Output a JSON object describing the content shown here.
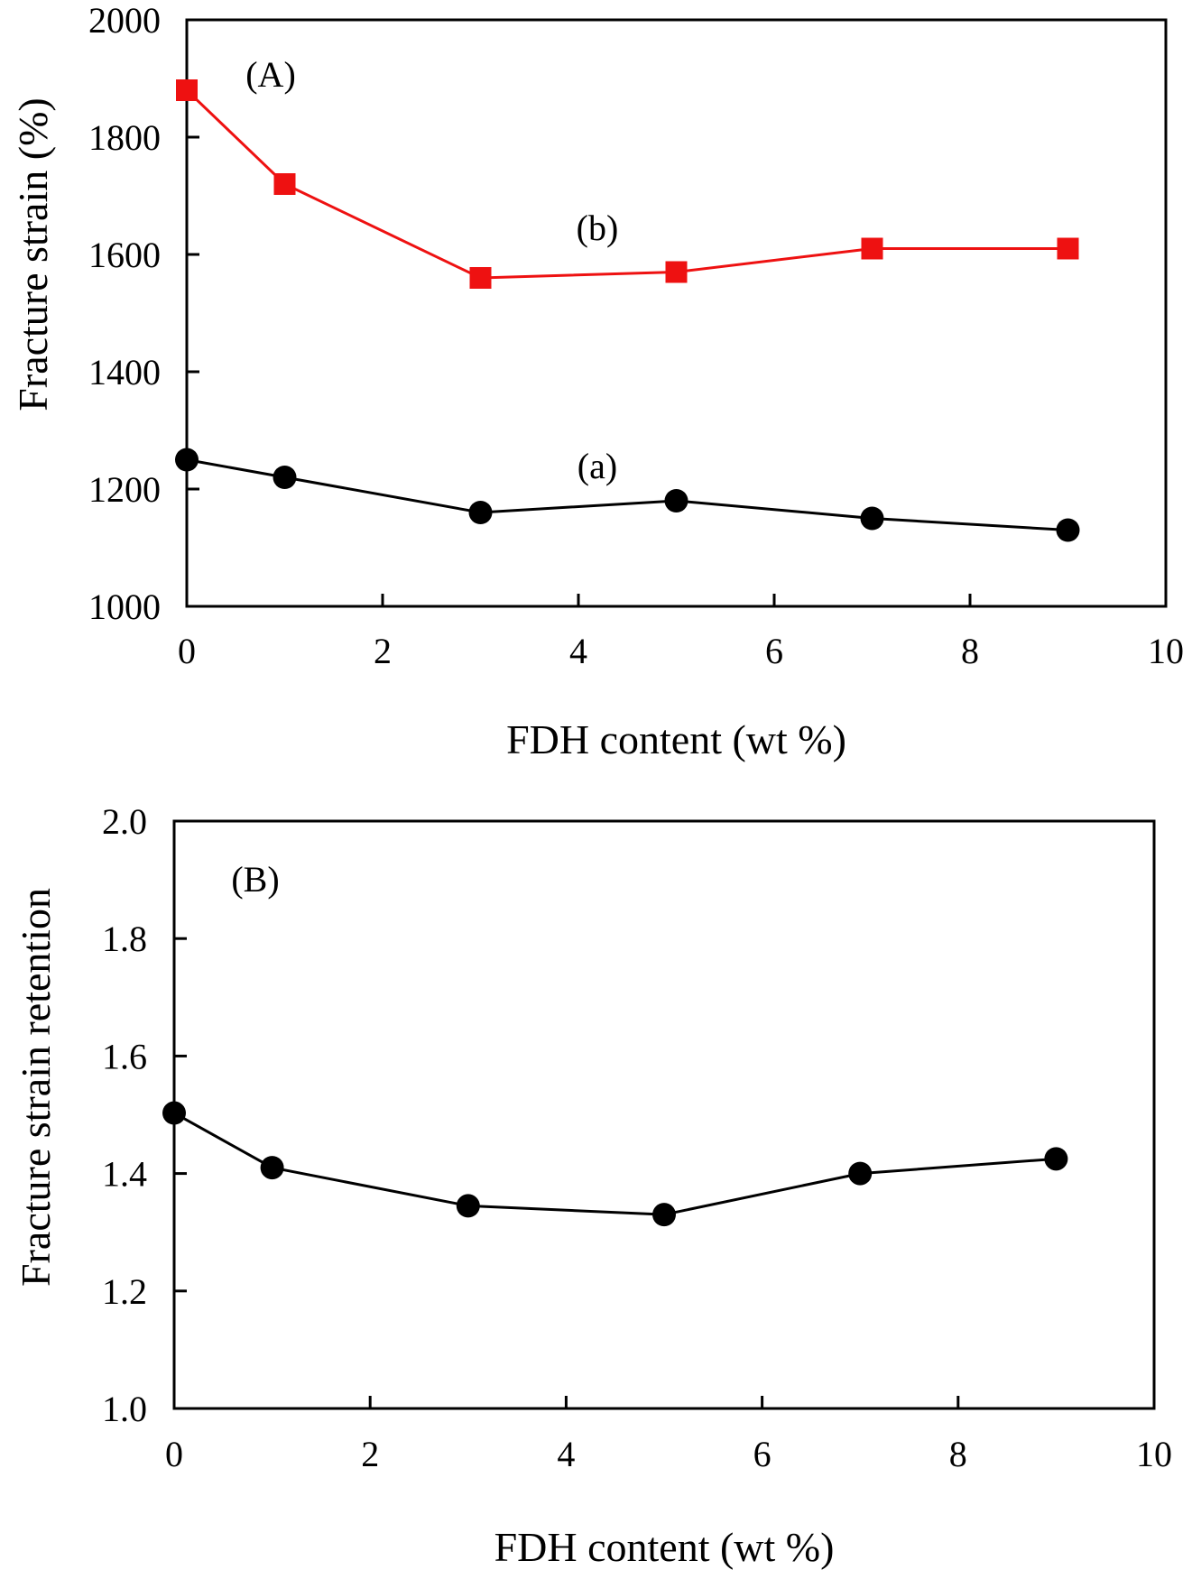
{
  "chart_data": [
    {
      "panel_label": "(A)",
      "type": "line",
      "xlabel": "FDH content (wt %)",
      "ylabel": "Fracture strain (%)",
      "xlim": [
        0,
        10
      ],
      "ylim": [
        1000,
        2000
      ],
      "xticks": [
        0,
        2,
        4,
        6,
        8,
        10
      ],
      "yticks": [
        1000,
        1200,
        1400,
        1600,
        1800,
        2000
      ],
      "grid": false,
      "series": [
        {
          "name": "(a)",
          "marker": "circle",
          "color": "#000000",
          "x": [
            0,
            1,
            3,
            5,
            7,
            9
          ],
          "y": [
            1250,
            1220,
            1160,
            1180,
            1150,
            1130
          ]
        },
        {
          "name": "(b)",
          "marker": "square",
          "color": "#ee1111",
          "x": [
            0,
            1,
            3,
            5,
            7,
            9
          ],
          "y": [
            1880,
            1720,
            1560,
            1570,
            1610,
            1610
          ]
        }
      ]
    },
    {
      "panel_label": "(B)",
      "type": "line",
      "xlabel": "FDH content (wt %)",
      "ylabel": "Fracture strain retention",
      "xlim": [
        0,
        10
      ],
      "ylim": [
        1.0,
        2.0
      ],
      "xticks": [
        0,
        2,
        4,
        6,
        8,
        10
      ],
      "yticks": [
        1.0,
        1.2,
        1.4,
        1.6,
        1.8,
        2.0
      ],
      "grid": false,
      "series": [
        {
          "marker": "circle",
          "color": "#000000",
          "x": [
            0,
            1,
            3,
            5,
            7,
            9
          ],
          "y": [
            1.503,
            1.41,
            1.345,
            1.33,
            1.4,
            1.425
          ]
        }
      ]
    }
  ]
}
